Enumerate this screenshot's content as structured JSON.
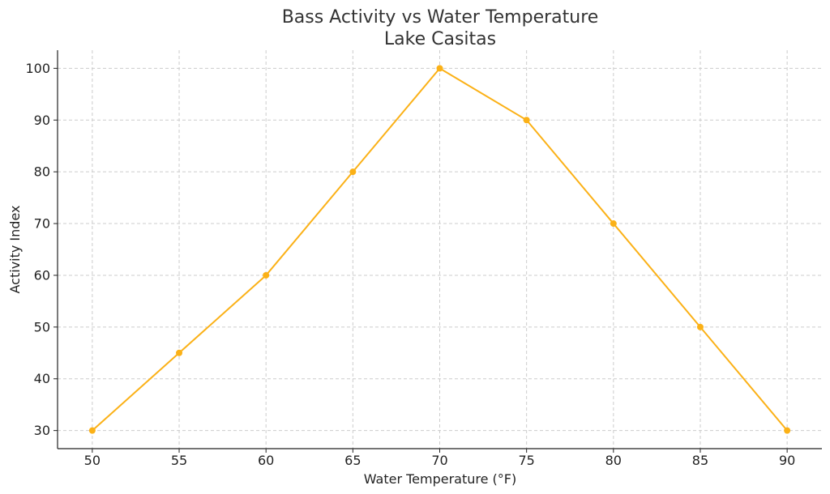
{
  "chart_data": {
    "type": "line",
    "title": "Bass Activity vs Water Temperature",
    "subtitle": "Lake Casitas",
    "xlabel": "Water Temperature (°F)",
    "ylabel": "Activity Index",
    "x": [
      50,
      55,
      60,
      65,
      70,
      75,
      80,
      85,
      90
    ],
    "series": [
      {
        "values": [
          30,
          45,
          60,
          80,
          100,
          90,
          70,
          50,
          30
        ],
        "color": "#FBB117"
      }
    ],
    "xticks": [
      50,
      55,
      60,
      65,
      70,
      75,
      80,
      85,
      90
    ],
    "yticks": [
      30,
      40,
      50,
      60,
      70,
      80,
      90,
      100
    ],
    "xlim": [
      48,
      92
    ],
    "ylim": [
      26.5,
      103.5
    ],
    "grid": true,
    "grid_color": "#cccccc",
    "axis_color": "#222222"
  }
}
